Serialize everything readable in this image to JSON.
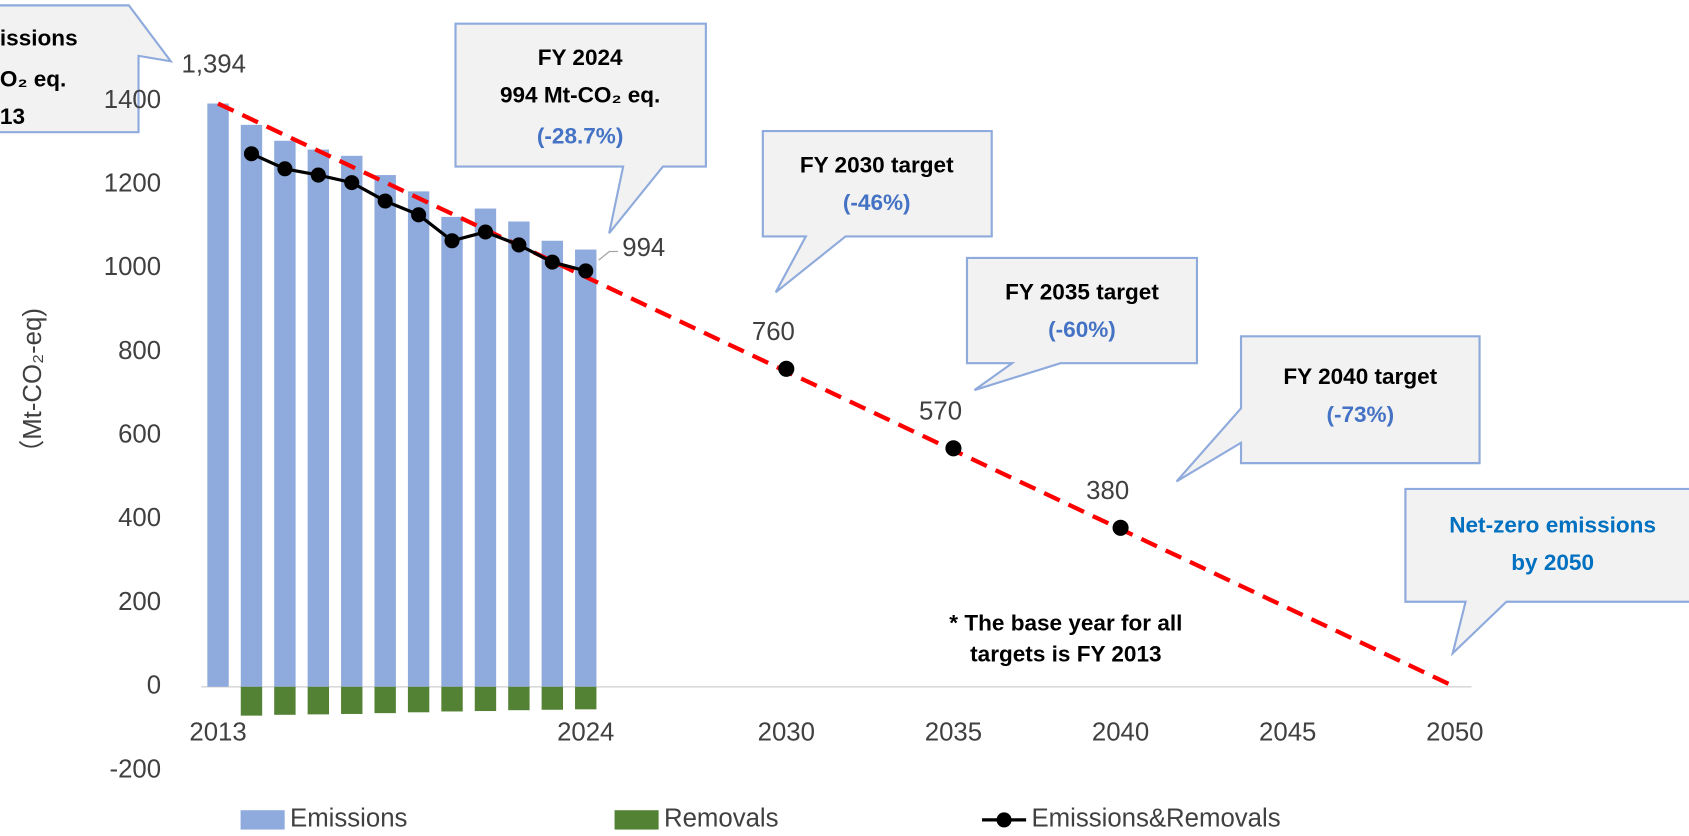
{
  "chart_data": {
    "type": "bar_line",
    "y_label": "（Mt-CO₂-eq)",
    "x": [
      2013,
      2014,
      2015,
      2016,
      2017,
      2018,
      2019,
      2020,
      2021,
      2022,
      2023,
      2024
    ],
    "series": [
      {
        "name": "Emissions",
        "type": "bar",
        "color": "#8faadc",
        "values": [
          1394,
          1343,
          1305,
          1284,
          1269,
          1223,
          1184,
          1123,
          1143,
          1112,
          1066,
          1045
        ]
      },
      {
        "name": "Removals",
        "type": "bar",
        "color": "#548235",
        "values": [
          null,
          -69,
          -67,
          -66,
          -65,
          -63,
          -61,
          -59,
          -58,
          -56,
          -55,
          -54
        ]
      },
      {
        "name": "Emissions&Removals",
        "type": "line",
        "color": "#000000",
        "values": [
          null,
          1274,
          1238,
          1223,
          1205,
          1161,
          1128,
          1066,
          1087,
          1056,
          1015,
          994
        ]
      }
    ],
    "pathway": {
      "x": [
        2013,
        2050
      ],
      "values": [
        1394,
        0
      ],
      "color": "#ff0000",
      "dashed": true
    },
    "targets": {
      "x": [
        2030,
        2035,
        2040
      ],
      "values": [
        760,
        570,
        380
      ],
      "color": "#000000"
    },
    "point_labels": [
      {
        "x": 2013,
        "value": 1394,
        "label": "1,394"
      },
      {
        "x": 2024,
        "value": 994,
        "label": "994"
      }
    ],
    "xlim": [
      2012.5,
      2050.5
    ],
    "xticks": [
      2013,
      2024,
      2030,
      2035,
      2040,
      2045,
      2050
    ],
    "ylim": [
      -200,
      1400
    ],
    "yticks": [
      -200,
      0,
      200,
      400,
      600,
      800,
      1000,
      1200,
      1400
    ],
    "negative_tick_color": "#ff0000",
    "grid": false,
    "legend": "bottom",
    "callouts": [
      {
        "lines": [
          {
            "text": "issions",
            "color": "#000000"
          },
          {
            "text": "O₂ eq.",
            "color": "#000000"
          },
          {
            "text": "13",
            "color": "#000000"
          }
        ]
      },
      {
        "lines": [
          {
            "text": "FY 2024",
            "color": "#000000"
          },
          {
            "text": "994 Mt-CO₂ eq.",
            "color": "#000000"
          },
          {
            "text": "(-28.7%)",
            "color": "#4472c4"
          }
        ]
      },
      {
        "lines": [
          {
            "text": "FY 2030 target",
            "color": "#000000"
          },
          {
            "text": "(-46%)",
            "color": "#4472c4"
          }
        ]
      },
      {
        "lines": [
          {
            "text": "FY 2035 target",
            "color": "#000000"
          },
          {
            "text": "(-60%)",
            "color": "#4472c4"
          }
        ]
      },
      {
        "lines": [
          {
            "text": "FY 2040 target",
            "color": "#000000"
          },
          {
            "text": "(-73%)",
            "color": "#4472c4"
          }
        ]
      },
      {
        "lines": [
          {
            "text": "Net-zero emissions",
            "color": "#0070c0"
          },
          {
            "text": "by 2050",
            "color": "#0070c0"
          }
        ]
      }
    ],
    "note": [
      "* The base year for all",
      "targets is FY 2013"
    ]
  }
}
